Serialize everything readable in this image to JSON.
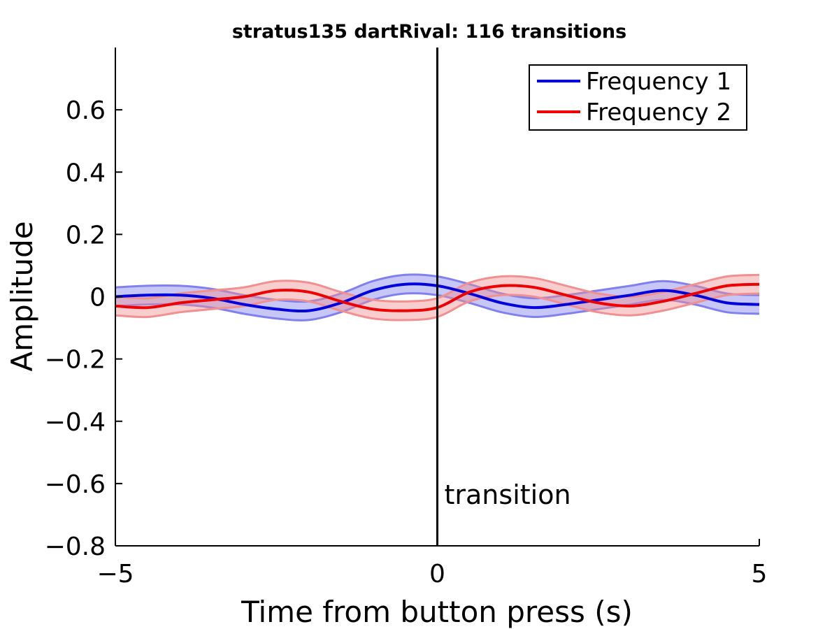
{
  "chart_data": {
    "type": "line",
    "title": "stratus135 dartRival: 116 transitions",
    "xlabel": "Time from button press (s)",
    "ylabel": "Amplitude",
    "xlim": [
      -5,
      5
    ],
    "ylim": [
      -0.8,
      0.8
    ],
    "xticks": [
      -5,
      0,
      5
    ],
    "xtick_labels": [
      "−5",
      "0",
      "5"
    ],
    "yticks": [
      -0.8,
      -0.6,
      -0.4,
      -0.2,
      0,
      0.2,
      0.4,
      0.6
    ],
    "ytick_labels": [
      "−0.8",
      "−0.6",
      "−0.4",
      "−0.2",
      "0",
      "0.2",
      "0.4",
      "0.6"
    ],
    "grid": false,
    "legend_position": "top-right",
    "x": [
      -5,
      -4.5,
      -4,
      -3.5,
      -3,
      -2.5,
      -2,
      -1.5,
      -1,
      -0.5,
      0,
      0.5,
      1,
      1.5,
      2,
      2.5,
      3,
      3.5,
      4,
      4.5,
      5
    ],
    "series": [
      {
        "name": "Frequency 1",
        "color": "#0000dd",
        "band_color": "#8080ee",
        "values": [
          0.0,
          0.005,
          0.005,
          -0.005,
          -0.025,
          -0.04,
          -0.045,
          -0.02,
          0.02,
          0.04,
          0.035,
          0.01,
          -0.02,
          -0.035,
          -0.025,
          -0.01,
          0.005,
          0.02,
          0.005,
          -0.02,
          -0.025
        ],
        "band_halfwidth": 0.03
      },
      {
        "name": "Frequency 2",
        "color": "#ee0000",
        "band_color": "#f09090",
        "values": [
          -0.03,
          -0.035,
          -0.02,
          -0.01,
          0.0,
          0.02,
          0.015,
          -0.015,
          -0.04,
          -0.045,
          -0.035,
          0.015,
          0.035,
          0.03,
          0.005,
          -0.02,
          -0.03,
          -0.015,
          0.01,
          0.035,
          0.04
        ],
        "band_halfwidth": 0.03
      }
    ],
    "vline": {
      "x": 0,
      "label": "transition",
      "color": "#000000"
    }
  }
}
